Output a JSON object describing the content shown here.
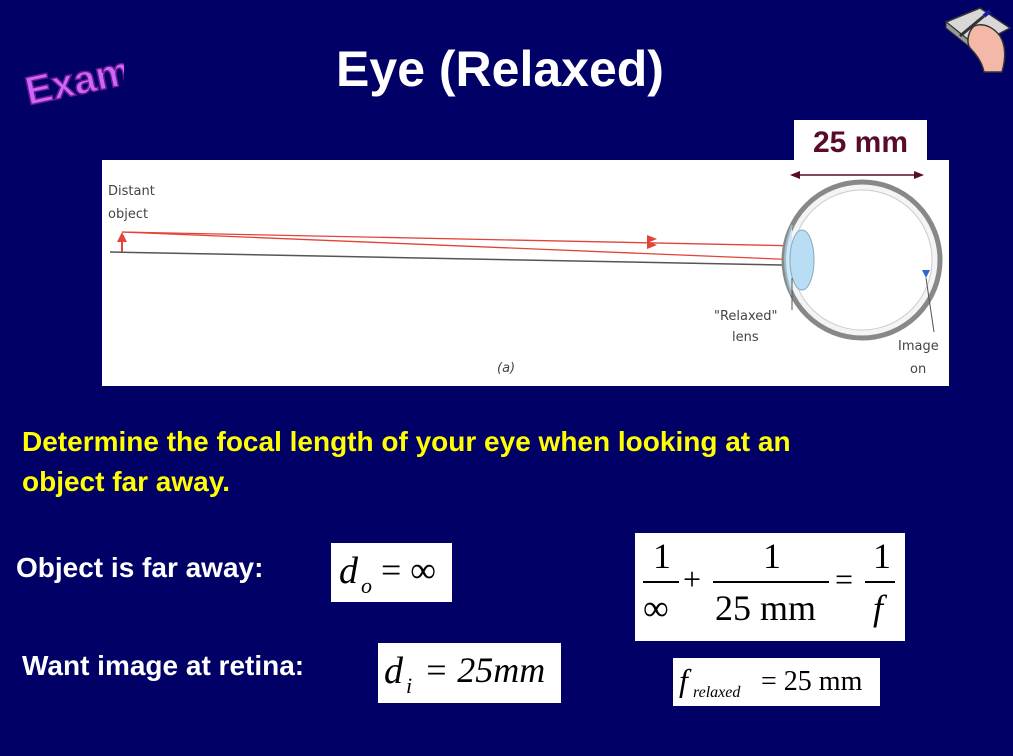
{
  "slide": {
    "tag": "Example",
    "title": "Eye (Relaxed)"
  },
  "figure": {
    "dimension_label": "25 mm",
    "labels": {
      "distant": "Distant",
      "object": "object",
      "relaxed": "\"Relaxed\"",
      "lens": "lens",
      "image": "Image",
      "on": "on",
      "panel": "(a)"
    }
  },
  "prompt": {
    "line1": "Determine the focal length of your eye when looking at an",
    "line2": "object far away."
  },
  "given": {
    "object_label": "Object is far away:",
    "object_eq_var": "d",
    "object_eq_sub": "o",
    "object_eq_rhs": "= ∞",
    "image_label": "Want image at retina:",
    "image_eq_var": "d",
    "image_eq_sub": "i",
    "image_eq_rhs": "= 25mm"
  },
  "lens_equation": {
    "n1": "1",
    "d1": "∞",
    "plus": "+",
    "n2": "1",
    "d2": "25 mm",
    "equals": "=",
    "n3": "1",
    "d3": "f"
  },
  "result": {
    "var": "f",
    "sub": "relaxed",
    "rhs": "= 25 mm"
  },
  "colors": {
    "background": "#000066",
    "prompt": "#ffff00",
    "title": "#ffffff",
    "tag": "#cc66ff",
    "dimension": "#5a0a2a"
  }
}
